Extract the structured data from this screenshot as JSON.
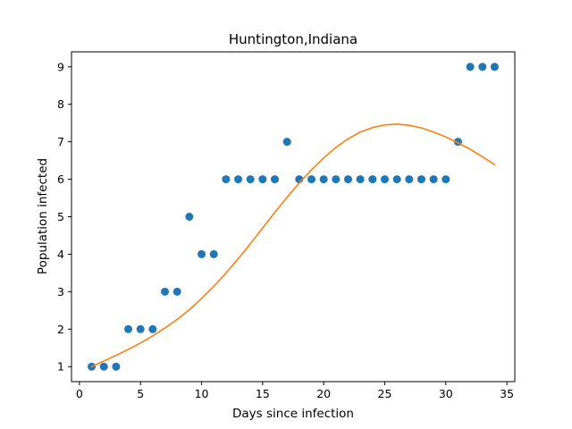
{
  "chart_data": {
    "type": "scatter",
    "title": "Huntington,Indiana",
    "xlabel": "Days since infection",
    "ylabel": "Population infected",
    "xlim": [
      -0.65,
      35.65
    ],
    "ylim": [
      0.6,
      9.4
    ],
    "xticks": [
      0,
      5,
      10,
      15,
      20,
      25,
      30,
      35
    ],
    "yticks": [
      1,
      2,
      3,
      4,
      5,
      6,
      7,
      8,
      9
    ],
    "grid": false,
    "series": [
      {
        "kind": "points",
        "color": "#1f77b4",
        "x": [
          1,
          2,
          3,
          4,
          5,
          6,
          7,
          8,
          9,
          10,
          11,
          12,
          13,
          14,
          15,
          16,
          17,
          18,
          19,
          20,
          21,
          22,
          23,
          24,
          25,
          26,
          27,
          28,
          29,
          30,
          31,
          32,
          33,
          34
        ],
        "y": [
          1,
          1,
          1,
          2,
          2,
          2,
          3,
          3,
          5,
          4,
          4,
          6,
          6,
          6,
          6,
          6,
          7,
          6,
          6,
          6,
          6,
          6,
          6,
          6,
          6,
          6,
          6,
          6,
          6,
          6,
          7,
          9,
          9,
          9
        ]
      },
      {
        "kind": "line",
        "color": "#ff7f0e",
        "x": [
          1,
          2,
          3,
          4,
          5,
          6,
          7,
          8,
          9,
          10,
          11,
          12,
          13,
          14,
          15,
          16,
          17,
          18,
          19,
          20,
          21,
          22,
          23,
          24,
          25,
          26,
          27,
          28,
          29,
          30,
          31,
          32,
          33,
          34
        ],
        "y": [
          1.0,
          1.15,
          1.3,
          1.46,
          1.63,
          1.82,
          2.03,
          2.26,
          2.52,
          2.82,
          3.14,
          3.5,
          3.88,
          4.28,
          4.7,
          5.12,
          5.52,
          5.9,
          6.25,
          6.57,
          6.85,
          7.08,
          7.26,
          7.38,
          7.45,
          7.47,
          7.44,
          7.37,
          7.26,
          7.13,
          6.97,
          6.8,
          6.6,
          6.39
        ]
      }
    ]
  }
}
